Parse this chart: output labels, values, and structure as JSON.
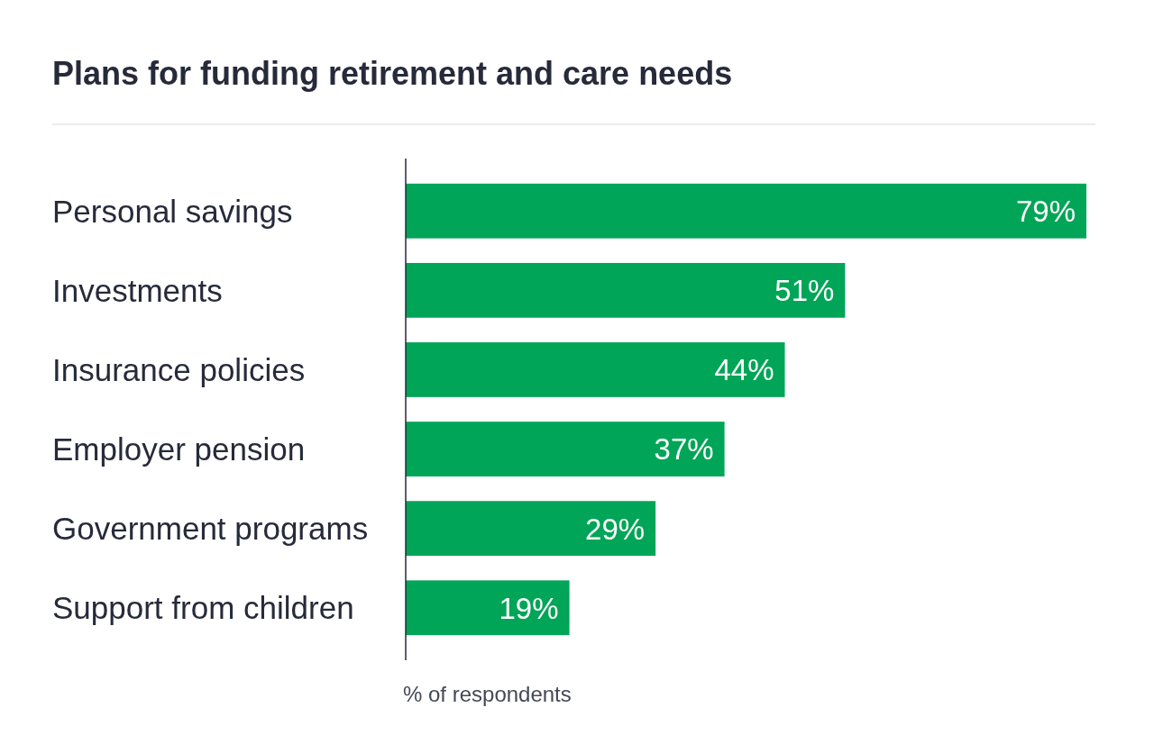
{
  "chart_data": {
    "type": "bar",
    "orientation": "horizontal",
    "title": "Plans for funding retirement and care needs",
    "xlabel": "% of respondents",
    "categories": [
      "Personal savings",
      "Investments",
      "Insurance policies",
      "Employer pension",
      "Government programs",
      "Support from children"
    ],
    "values": [
      79,
      51,
      44,
      37,
      29,
      19
    ],
    "value_labels": [
      "79%",
      "51%",
      "44%",
      "37%",
      "29%",
      "19%"
    ],
    "color": "#00a557"
  }
}
